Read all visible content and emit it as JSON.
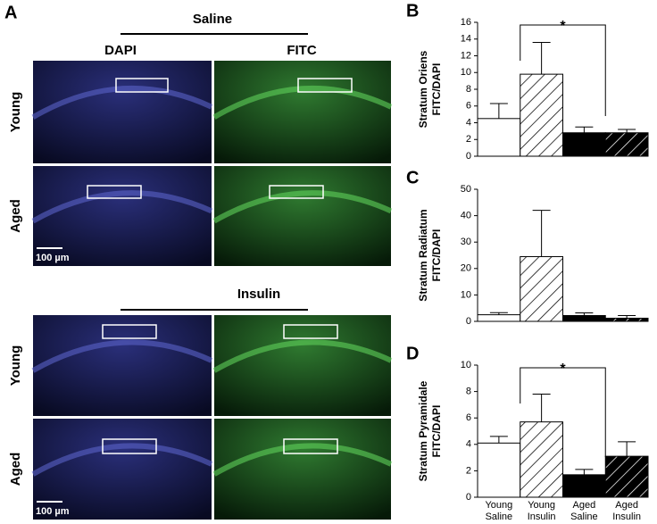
{
  "panel_a": {
    "label": "A",
    "columns": [
      "DAPI",
      "FITC"
    ],
    "groups": [
      {
        "title": "Saline",
        "rows": [
          "Young",
          "Aged"
        ],
        "scale_bar": "100 µm"
      },
      {
        "title": "Insulin",
        "rows": [
          "Young",
          "Aged"
        ],
        "scale_bar": "100 µm"
      }
    ]
  },
  "chart_data": [
    {
      "type": "bar",
      "panel": "B",
      "ylabel": [
        "Stratum Oriens",
        "FITC/DAPI"
      ],
      "values": [
        4.5,
        9.8,
        2.8,
        2.8
      ],
      "errors": [
        1.8,
        3.8,
        0.7,
        0.4
      ],
      "ylim": [
        0,
        16
      ],
      "yticks": [
        0,
        2,
        4,
        6,
        8,
        10,
        12,
        14,
        16
      ],
      "annotation": "*"
    },
    {
      "type": "bar",
      "panel": "C",
      "ylabel": [
        "Stratum Radiatum",
        "FITC/DAPI"
      ],
      "values": [
        2.5,
        24.5,
        2.2,
        1.2
      ],
      "errors": [
        0.8,
        17.5,
        1.0,
        1.0
      ],
      "ylim": [
        0,
        50
      ],
      "yticks": [
        0,
        10,
        20,
        30,
        40,
        50
      ]
    },
    {
      "type": "bar",
      "panel": "D",
      "ylabel": [
        "Stratum Pyramidale",
        "FITC/DAPI"
      ],
      "categories": [
        "Young Saline",
        "Young Insulin",
        "Aged Saline",
        "Aged Insulin"
      ],
      "values": [
        4.1,
        5.7,
        1.7,
        3.1
      ],
      "errors": [
        0.5,
        2.1,
        0.4,
        1.1
      ],
      "ylim": [
        0,
        10
      ],
      "yticks": [
        0,
        2,
        4,
        6,
        8,
        10
      ],
      "annotation": "*"
    }
  ]
}
